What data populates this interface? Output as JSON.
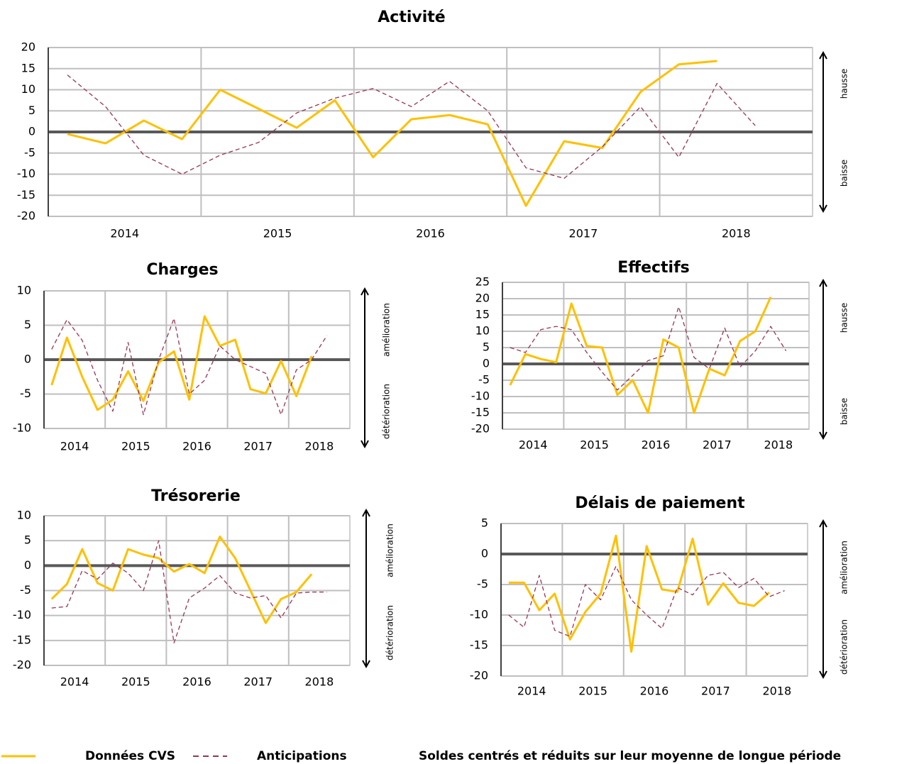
{
  "chart_data": [
    {
      "type": "line",
      "title": "Activité",
      "categories": [
        null,
        "2014",
        null,
        null,
        null,
        "2015",
        null,
        null,
        null,
        "2016",
        null,
        null,
        null,
        "2017",
        null,
        null,
        null,
        "2018",
        null,
        null
      ],
      "ylim": [
        -20,
        20
      ],
      "yticks": [
        -20,
        -15,
        -10,
        -5,
        0,
        5,
        10,
        15,
        20
      ],
      "grid": true,
      "annotations": [
        "hausse",
        "baisse"
      ],
      "series": [
        {
          "name": "Données CVS",
          "color": "#ffc000",
          "values": [
            -0.5,
            -2.7,
            2.7,
            -1.7,
            10,
            5.5,
            1,
            7.5,
            -6,
            3,
            4,
            1.8,
            -17.5,
            -2.2,
            -3.8,
            9.5,
            16,
            16.8,
            null,
            null
          ]
        },
        {
          "name": "Anticipations",
          "color": "#993355",
          "values": [
            13.5,
            6,
            -5.5,
            -10,
            -5.5,
            -2.5,
            4.5,
            8,
            10.3,
            6,
            12,
            5,
            -8.5,
            -11,
            -3.5,
            6,
            -6,
            11.5,
            1.5,
            null
          ]
        }
      ]
    },
    {
      "type": "line",
      "title": "Charges",
      "categories": [
        null,
        "2014",
        null,
        null,
        null,
        "2015",
        null,
        null,
        null,
        "2016",
        null,
        null,
        null,
        "2017",
        null,
        null,
        null,
        "2018",
        null,
        null
      ],
      "ylim": [
        -10,
        10
      ],
      "yticks": [
        -10,
        -5,
        0,
        5,
        10
      ],
      "grid": true,
      "annotations": [
        "amélioration",
        "détérioration"
      ],
      "series": [
        {
          "name": "Données CVS",
          "color": "#ffc000",
          "values": [
            -3.7,
            3.2,
            -2.5,
            -7.3,
            -5.8,
            -1.7,
            -6,
            -0.4,
            1.2,
            -5.8,
            6.3,
            2,
            2.9,
            -4.3,
            -4.9,
            -0.2,
            -5.3,
            0.5,
            null,
            null
          ]
        },
        {
          "name": "Anticipations",
          "color": "#993355",
          "values": [
            1.5,
            5.8,
            2.8,
            -3,
            -7.5,
            2.5,
            -8,
            0,
            6,
            -5,
            -3,
            2,
            0,
            -1,
            -2,
            -8,
            -1.5,
            0,
            3.5,
            null
          ]
        }
      ]
    },
    {
      "type": "line",
      "title": "Effectifs",
      "categories": [
        null,
        "2014",
        null,
        null,
        null,
        "2015",
        null,
        null,
        null,
        "2016",
        null,
        null,
        null,
        "2017",
        null,
        null,
        null,
        "2018",
        null,
        null
      ],
      "ylim": [
        -20,
        25
      ],
      "yticks": [
        -20,
        -15,
        -10,
        -5,
        0,
        5,
        10,
        15,
        20,
        25
      ],
      "grid": true,
      "annotations": [
        "hausse",
        "baisse"
      ],
      "series": [
        {
          "name": "Données CVS",
          "color": "#ffc000",
          "values": [
            -6.5,
            3,
            1.5,
            0.5,
            18.5,
            5.5,
            5,
            -9.5,
            -5,
            -15,
            7.5,
            5,
            -15,
            -1.5,
            -3.5,
            7,
            10,
            20.5,
            null,
            null
          ]
        },
        {
          "name": "Anticipations",
          "color": "#993355",
          "values": [
            5,
            3.5,
            10.5,
            11.5,
            10.5,
            3.5,
            -2.5,
            -8,
            -3.5,
            1,
            2.5,
            17.5,
            2,
            -1.5,
            11,
            -1,
            4,
            11.5,
            4,
            null
          ]
        }
      ]
    },
    {
      "type": "line",
      "title": "Trésorerie",
      "categories": [
        null,
        "2014",
        null,
        null,
        null,
        "2015",
        null,
        null,
        null,
        "2016",
        null,
        null,
        null,
        "2017",
        null,
        null,
        null,
        "2018",
        null,
        null
      ],
      "ylim": [
        -20,
        10
      ],
      "yticks": [
        -20,
        -15,
        -10,
        -5,
        0,
        5,
        10
      ],
      "grid": true,
      "annotations": [
        "amélioration",
        "détérioration"
      ],
      "series": [
        {
          "name": "Données CVS",
          "color": "#ffc000",
          "values": [
            -6.7,
            -3.7,
            3.3,
            -3.5,
            -5,
            3.3,
            2.2,
            1.5,
            -1.2,
            0.3,
            -1.5,
            5.8,
            1.5,
            -5,
            -11.5,
            -6.7,
            -5.3,
            -1.7,
            null,
            null
          ]
        },
        {
          "name": "Anticipations",
          "color": "#993355",
          "values": [
            -8.5,
            -8.2,
            -1,
            -2.7,
            0.5,
            -1.5,
            -5,
            5,
            -15.5,
            -6.5,
            -4.5,
            -2,
            -5.5,
            -6.5,
            -6,
            -10.5,
            -5.5,
            -5.3,
            -5.3,
            null
          ]
        }
      ]
    },
    {
      "type": "line",
      "title": "Délais de paiement",
      "categories": [
        null,
        "2014",
        null,
        null,
        null,
        "2015",
        null,
        null,
        null,
        "2016",
        null,
        null,
        null,
        "2017",
        null,
        null,
        null,
        "2018",
        null,
        null
      ],
      "ylim": [
        -20,
        5
      ],
      "yticks": [
        -20,
        -15,
        -10,
        -5,
        0,
        5
      ],
      "grid": true,
      "annotations": [
        "amélioration",
        "détérioration"
      ],
      "series": [
        {
          "name": "Données CVS",
          "color": "#ffc000",
          "values": [
            -4.7,
            -4.7,
            -9.2,
            -6.5,
            -14,
            -9.5,
            -6.5,
            3,
            -16,
            1.3,
            -5.8,
            -6.2,
            2.5,
            -8.3,
            -4.8,
            -8,
            -8.5,
            -6.3,
            null,
            null
          ]
        },
        {
          "name": "Anticipations",
          "color": "#993355",
          "values": [
            -10,
            -12,
            -3.5,
            -12.5,
            -13.5,
            -5,
            -7.5,
            -2,
            -7.5,
            -10,
            -12.2,
            -5.5,
            -6.7,
            -3.5,
            -3,
            -5.5,
            -4,
            -7,
            -6,
            null
          ]
        }
      ]
    }
  ],
  "note": "Soldes centrés et réduits sur leur moyenne de longue période"
}
